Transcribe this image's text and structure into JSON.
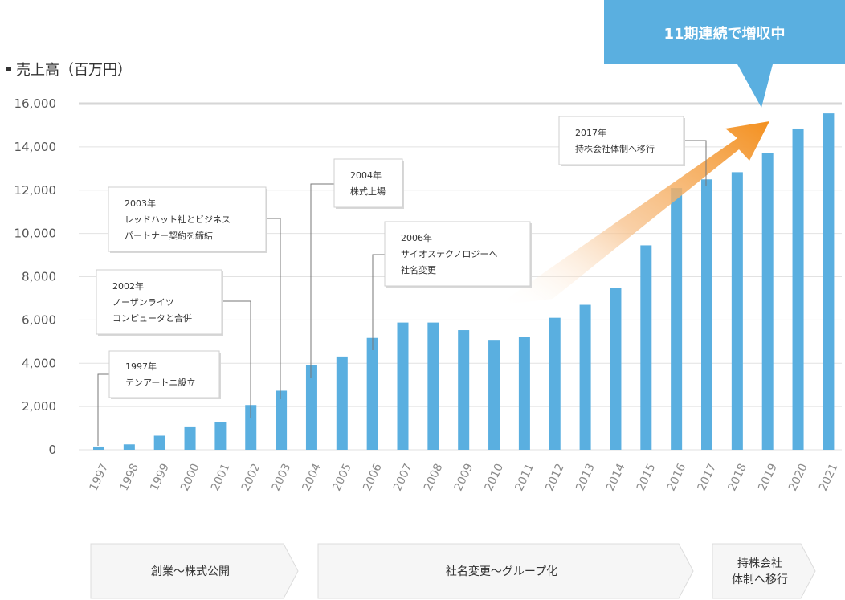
{
  "legend": {
    "title": "売上高（百万円）"
  },
  "highlight": {
    "text": "11期連続で増収中"
  },
  "colors": {
    "bar": "#5aafe0",
    "arrow": "#f39a2b",
    "callout": "#5aafe0",
    "grid": "#e2e2e2",
    "top_grid": "#d6d6d6",
    "phase_fill": "#f6f6f6",
    "phase_stroke": "#dcdcdc"
  },
  "chart_data": {
    "type": "bar",
    "categories": [
      "1997",
      "1998",
      "1999",
      "2000",
      "2001",
      "2002",
      "2003",
      "2004",
      "2005",
      "2006",
      "2007",
      "2008",
      "2009",
      "2010",
      "2011",
      "2012",
      "2013",
      "2014",
      "2015",
      "2016",
      "2017",
      "2018",
      "2019",
      "2020",
      "2021"
    ],
    "series": [
      {
        "values": [
          150,
          250,
          650,
          1080,
          1280,
          2070,
          2730,
          3920,
          4310,
          5170,
          5880,
          5880,
          5530,
          5080,
          5200,
          6100,
          6700,
          7480,
          9450,
          12100,
          12500,
          12830,
          13700,
          14850,
          15550
        ]
      }
    ],
    "yticks": [
      "0",
      "2,000",
      "4,000",
      "6,000",
      "8,000",
      "10,000",
      "12,000",
      "14,000",
      "16,000"
    ],
    "ylim": [
      0,
      16000
    ],
    "grid": true,
    "annotations": [
      {
        "year": "1997",
        "lines": [
          "1997年",
          "テンアートニ設立"
        ]
      },
      {
        "year": "2002",
        "lines": [
          "2002年",
          "ノーザンライツ",
          "コンピュータと合併"
        ]
      },
      {
        "year": "2003",
        "lines": [
          "2003年",
          "レッドハット社とビジネス",
          "パートナー契約を締結"
        ]
      },
      {
        "year": "2004",
        "lines": [
          "2004年",
          "株式上場"
        ]
      },
      {
        "year": "2006",
        "lines": [
          "2006年",
          "サイオステクノロジーへ",
          "社名変更"
        ]
      },
      {
        "year": "2017",
        "lines": [
          "2017年",
          "持株会社体制へ移行"
        ]
      }
    ],
    "phases": [
      {
        "lines": [
          "創業〜株式公開"
        ]
      },
      {
        "lines": [
          "社名変更〜グループ化"
        ]
      },
      {
        "lines": [
          "持株会社",
          "体制へ移行"
        ]
      }
    ]
  }
}
